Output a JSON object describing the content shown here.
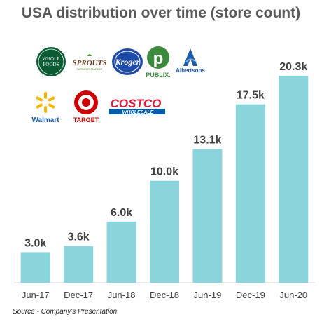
{
  "title": "USA distribution over time (store count)",
  "source": "Source - Company's Presentation",
  "logos": {
    "whole_foods": "WHOLE FOODS",
    "sprouts": "SPROUTS",
    "kroger": "Kroger",
    "publix": "Publix.",
    "albertsons": "Albertsons",
    "walmart": "Walmart",
    "target": "TARGET",
    "costco": "COSTCO",
    "costco_sub": "WHOLESALE"
  },
  "colors": {
    "bar": "#8ad4db",
    "label": "#404040",
    "axis": "#d9d9d9"
  },
  "chart_data": {
    "type": "bar",
    "categories": [
      "Jun-17",
      "Dec-17",
      "Jun-18",
      "Dec-18",
      "Jun-19",
      "Dec-19",
      "Jun-20"
    ],
    "values": [
      3.0,
      3.6,
      6.0,
      10.0,
      13.1,
      17.5,
      20.3
    ],
    "data_labels": [
      "3.0k",
      "3.6k",
      "6.0k",
      "10.0k",
      "13.1k",
      "17.5k",
      "20.3k"
    ],
    "ylim": [
      0,
      20.3
    ],
    "grid": false,
    "title": "USA distribution over time (store count)",
    "xlabel": "",
    "ylabel": ""
  }
}
